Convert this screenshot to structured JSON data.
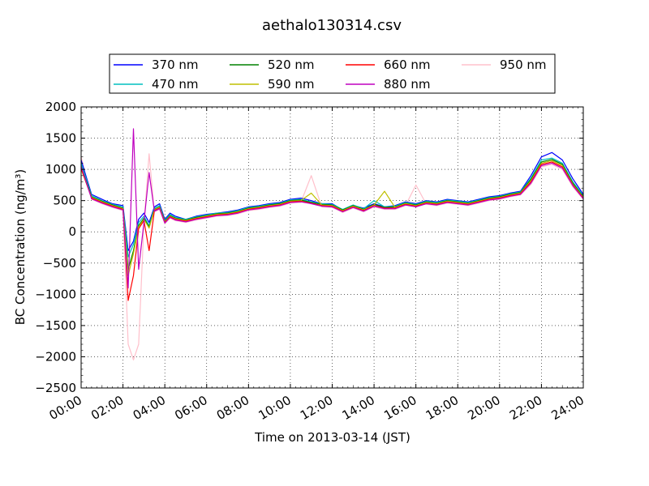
{
  "chart_data": {
    "type": "line",
    "title": "aethalo130314.csv",
    "xlabel": "Time on 2013-03-14 (JST)",
    "ylabel": "BC Concentration (ng/m³)",
    "xlim": [
      "00:00",
      "24:00"
    ],
    "ylim": [
      -2500,
      2000
    ],
    "x_tick_labels": [
      "00:00",
      "02:00",
      "04:00",
      "06:00",
      "08:00",
      "10:00",
      "12:00",
      "14:00",
      "16:00",
      "18:00",
      "20:00",
      "22:00",
      "24:00"
    ],
    "y_tick_labels": [
      "2000",
      "1500",
      "1000",
      "500",
      "0",
      "−500",
      "−1000",
      "−1500",
      "−2000",
      "−2500"
    ],
    "grid": true,
    "legend_position": "top",
    "x": [
      0.0,
      0.5,
      1.0,
      1.5,
      2.0,
      2.25,
      2.5,
      2.75,
      3.0,
      3.25,
      3.5,
      3.75,
      4.0,
      4.25,
      4.5,
      5.0,
      5.5,
      6.0,
      6.5,
      7.0,
      7.5,
      8.0,
      8.5,
      9.0,
      9.5,
      10.0,
      10.5,
      11.0,
      11.5,
      12.0,
      12.5,
      13.0,
      13.5,
      14.0,
      14.5,
      15.0,
      15.5,
      16.0,
      16.5,
      17.0,
      17.5,
      18.0,
      18.5,
      19.0,
      19.5,
      20.0,
      20.5,
      21.0,
      21.5,
      22.0,
      22.5,
      23.0,
      23.5,
      24.0
    ],
    "series": [
      {
        "name": "370 nm",
        "color": "#0000ff",
        "values": [
          1150,
          600,
          520,
          450,
          420,
          -300,
          -150,
          200,
          300,
          150,
          400,
          450,
          200,
          300,
          250,
          200,
          250,
          280,
          300,
          320,
          350,
          400,
          420,
          450,
          470,
          520,
          540,
          500,
          450,
          450,
          350,
          420,
          380,
          450,
          400,
          420,
          480,
          450,
          500,
          480,
          520,
          500,
          480,
          520,
          560,
          580,
          620,
          650,
          900,
          1200,
          1270,
          1150,
          850,
          600
        ]
      },
      {
        "name": "470 nm",
        "color": "#00bfbf",
        "values": [
          1100,
          580,
          500,
          440,
          400,
          -400,
          -200,
          150,
          250,
          100,
          380,
          420,
          180,
          280,
          230,
          200,
          240,
          270,
          300,
          310,
          340,
          390,
          410,
          440,
          460,
          510,
          520,
          480,
          450,
          440,
          360,
          430,
          370,
          500,
          400,
          410,
          470,
          440,
          490,
          470,
          510,
          490,
          470,
          510,
          550,
          570,
          610,
          640,
          860,
          1150,
          1180,
          1100,
          800,
          580
        ]
      },
      {
        "name": "520 nm",
        "color": "#008000",
        "values": [
          1050,
          560,
          490,
          430,
          380,
          -600,
          -300,
          100,
          220,
          80,
          360,
          400,
          170,
          260,
          220,
          190,
          230,
          260,
          290,
          300,
          330,
          380,
          400,
          430,
          450,
          500,
          510,
          470,
          440,
          430,
          350,
          420,
          360,
          440,
          390,
          400,
          460,
          430,
          480,
          460,
          500,
          480,
          460,
          500,
          540,
          560,
          600,
          630,
          840,
          1120,
          1160,
          1080,
          780,
          560
        ]
      },
      {
        "name": "590 nm",
        "color": "#bfbf00",
        "values": [
          1000,
          550,
          480,
          420,
          370,
          -700,
          -350,
          80,
          200,
          60,
          350,
          390,
          160,
          250,
          210,
          180,
          220,
          250,
          280,
          290,
          320,
          370,
          390,
          420,
          440,
          490,
          500,
          620,
          430,
          420,
          340,
          410,
          350,
          430,
          650,
          390,
          450,
          420,
          470,
          450,
          490,
          470,
          450,
          490,
          530,
          550,
          590,
          620,
          820,
          1100,
          1140,
          1060,
          760,
          550
        ]
      },
      {
        "name": "660 nm",
        "color": "#ff0000",
        "values": [
          1020,
          540,
          470,
          410,
          360,
          -1100,
          -700,
          50,
          180,
          -300,
          340,
          380,
          150,
          240,
          200,
          170,
          210,
          240,
          270,
          280,
          310,
          360,
          380,
          410,
          430,
          480,
          490,
          460,
          420,
          410,
          330,
          400,
          340,
          420,
          380,
          380,
          440,
          410,
          460,
          440,
          480,
          460,
          440,
          480,
          520,
          540,
          580,
          610,
          800,
          1080,
          1120,
          1040,
          750,
          540
        ]
      },
      {
        "name": "880 nm",
        "color": "#bf00bf",
        "values": [
          1050,
          530,
          460,
          400,
          350,
          -900,
          1650,
          -600,
          150,
          950,
          330,
          370,
          140,
          230,
          190,
          160,
          200,
          230,
          260,
          270,
          300,
          350,
          370,
          400,
          420,
          470,
          480,
          450,
          410,
          400,
          320,
          390,
          330,
          410,
          370,
          370,
          430,
          400,
          450,
          430,
          470,
          450,
          430,
          470,
          510,
          530,
          570,
          600,
          780,
          1060,
          1100,
          1020,
          740,
          530
        ]
      },
      {
        "name": "950 nm",
        "color": "#ffc0cb",
        "values": [
          1200,
          520,
          450,
          390,
          340,
          -1800,
          -2050,
          -1800,
          120,
          1250,
          320,
          360,
          130,
          220,
          180,
          150,
          190,
          220,
          250,
          260,
          290,
          340,
          360,
          390,
          410,
          460,
          470,
          900,
          400,
          390,
          310,
          380,
          320,
          400,
          360,
          360,
          420,
          750,
          440,
          420,
          460,
          440,
          420,
          460,
          500,
          520,
          560,
          590,
          760,
          1040,
          1080,
          1000,
          720,
          520
        ]
      }
    ]
  }
}
